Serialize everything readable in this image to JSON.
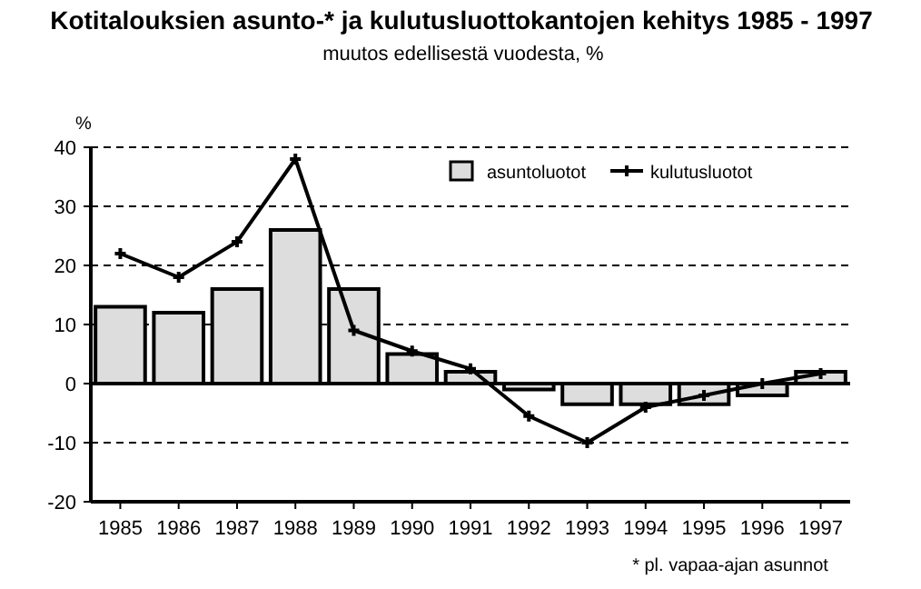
{
  "chart_data": {
    "type": "bar",
    "title": "Kotitalouksien asunto-* ja kulutusluottokantojen kehitys 1985 - 1997",
    "subtitle": "muutos edellisestä vuodesta, %",
    "ylabel": "%",
    "categories": [
      "1985",
      "1986",
      "1987",
      "1988",
      "1989",
      "1990",
      "1991",
      "1992",
      "1993",
      "1994",
      "1995",
      "1996",
      "1997"
    ],
    "series": [
      {
        "name": "asuntoluotot",
        "color": "#dddddd",
        "values": [
          13,
          12,
          16,
          26,
          16,
          5,
          2,
          -1,
          -3.5,
          -3.5,
          -3.5,
          -2,
          2
        ]
      },
      {
        "name": "kulutusluotot",
        "type": "line",
        "color": "#000000",
        "marker": "cross",
        "values": [
          22,
          18,
          24,
          38,
          9,
          5.5,
          2.5,
          -5.5,
          -10,
          -4,
          -2,
          0,
          1.7
        ]
      }
    ],
    "ylim": [
      -20,
      40
    ],
    "yticks": [
      -20,
      -10,
      0,
      10,
      20,
      30,
      40
    ],
    "grid": "y",
    "legend": "top right",
    "annotations": [
      "* pl. vapaa-ajan asunnot"
    ]
  }
}
